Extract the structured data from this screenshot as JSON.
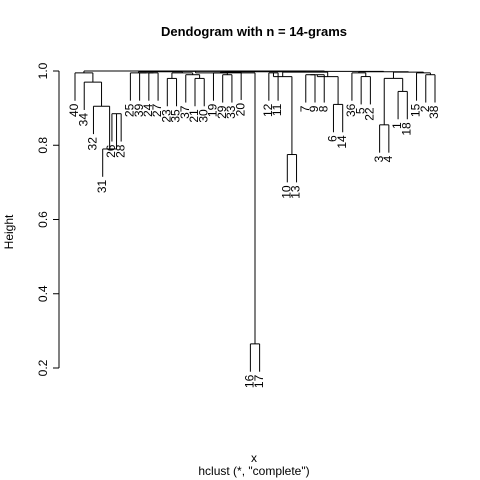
{
  "chart_data": {
    "type": "dendrogram",
    "title": "Dendogram with n = 14-grams",
    "xlabel": "x",
    "ylabel": "Height",
    "subtitle": "hclust (*, \"complete\")",
    "ylim": [
      0.2,
      1.0
    ],
    "yticks": [
      0.2,
      0.4,
      0.6,
      0.8,
      1.0
    ],
    "tick_labels": [
      "0.2",
      "0.4",
      "0.6",
      "0.8",
      "1.0"
    ],
    "order": [
      "40",
      "34",
      "32",
      "31",
      "26",
      "28",
      "25",
      "39",
      "24",
      "27",
      "23",
      "35",
      "37",
      "21",
      "30",
      "19",
      "29",
      "33",
      "20",
      "16",
      "17",
      "12",
      "11",
      "10",
      "13",
      "7",
      "9",
      "8",
      "6",
      "14",
      "36",
      "5",
      "22",
      "3",
      "4",
      "1",
      "18",
      "15",
      "2",
      "38"
    ],
    "merges": [
      {
        "a": "L:31",
        "b": "L:26",
        "h": 0.79
      },
      {
        "a": "L:16",
        "b": "L:17",
        "h": 0.265
      },
      {
        "a": "L:10",
        "b": "L:13",
        "h": 0.775
      },
      {
        "a": "L:3",
        "b": "L:4",
        "h": 0.855
      },
      {
        "a": "L:6",
        "b": "L:14",
        "h": 0.84
      },
      {
        "a": "L:1",
        "b": "L:18",
        "h": 0.86
      },
      {
        "a": "L:26",
        "b": "L:28",
        "h": 0.885
      },
      {
        "a": "L:32",
        "b": "M:6",
        "h": 0.91
      },
      {
        "a": "L:7",
        "b": "L:9",
        "h": 0.925
      },
      {
        "a": "L:1",
        "b": "L:18",
        "h": 0.95
      },
      {
        "a": "L:34",
        "b": "M:7",
        "h": 0.97
      },
      {
        "a": "L:12",
        "b": "M:2",
        "h": 0.985
      },
      {
        "a": "L:7",
        "b": "L:8",
        "h": 0.988
      },
      {
        "a": "L:5",
        "b": "L:22",
        "h": 0.99
      },
      {
        "a": "L:3",
        "b": "L:1",
        "h": 0.985
      },
      {
        "a": "L:23",
        "b": "L:35",
        "h": 0.985
      },
      {
        "a": "L:21",
        "b": "L:30",
        "h": 0.985
      },
      {
        "a": "L:20",
        "b": "L:16",
        "h": 0.995
      }
    ]
  }
}
